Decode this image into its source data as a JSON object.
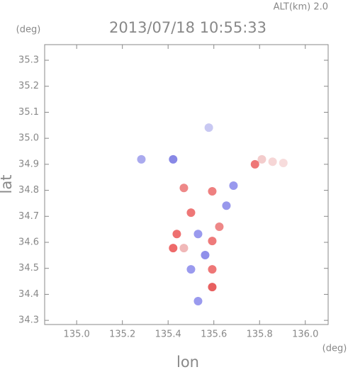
{
  "chart_data": {
    "type": "scatter",
    "title": "2013/07/18 10:55:33",
    "subtitle": "ALT(km) 2.0",
    "y_unit": "(deg)",
    "x_unit": "(deg)",
    "x_label": "lon",
    "y_label": "lat",
    "xlim": [
      134.86,
      136.1
    ],
    "ylim": [
      34.284,
      35.36
    ],
    "xticks": [
      {
        "value": 135.0,
        "label": "135.0"
      },
      135.2,
      135.4,
      135.6,
      135.8,
      {
        "value": 136.0,
        "label": "136.0"
      }
    ],
    "yticks": [
      35.3,
      35.2,
      35.1,
      {
        "value": 35.0,
        "label": "35.0"
      },
      34.9,
      34.8,
      34.7,
      34.6,
      34.5,
      34.4,
      34.3
    ],
    "x": [
      135.283,
      135.578,
      135.857,
      135.81,
      135.904,
      135.78,
      135.686,
      135.593,
      135.5,
      135.531,
      135.438,
      135.593,
      135.469,
      135.562,
      135.5,
      135.593,
      135.422,
      135.593,
      135.531,
      135.624,
      135.655,
      135.422,
      135.469
    ],
    "y": [
      34.919,
      35.041,
      34.91,
      34.919,
      34.905,
      34.9,
      34.818,
      34.796,
      34.714,
      34.632,
      34.632,
      34.605,
      34.578,
      34.551,
      34.496,
      34.496,
      34.578,
      34.428,
      34.374,
      34.66,
      34.741,
      34.919,
      34.809
    ],
    "colors": [
      "#aaaaee",
      "#c8c8f2",
      "#f6d6d6",
      "#f3cccc",
      "#f7dcdc",
      "#ee7777",
      "#9999ee",
      "#ee8080",
      "#ee7777",
      "#9a9aee",
      "#ee7070",
      "#ee7a7a",
      "#f0b8b8",
      "#9090ea",
      "#9a9aee",
      "#ee7777",
      "#ee6a6a",
      "#e86060",
      "#9a9aee",
      "#ee8888",
      "#9898ec",
      "#8888e6",
      "#ee8888"
    ]
  }
}
